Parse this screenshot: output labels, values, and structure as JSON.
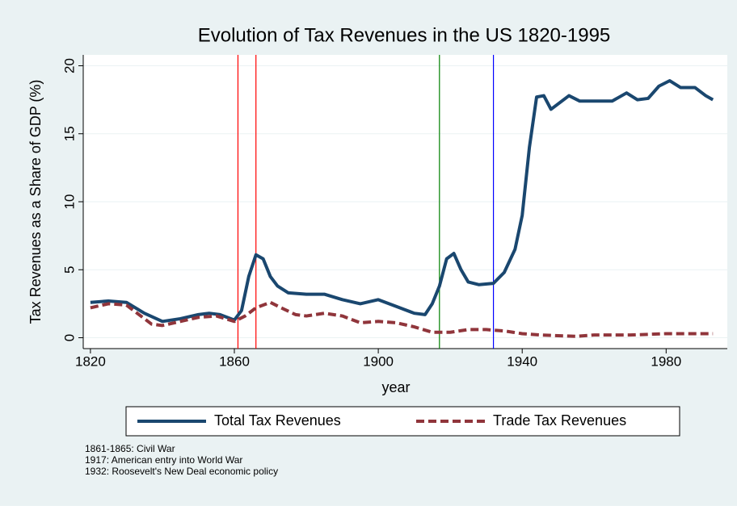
{
  "chart_data": {
    "type": "line",
    "title": "Evolution of Tax Revenues in the US 1820-1995",
    "x_label": "year",
    "y_label": "Tax Revenues as a Share of GDP (%)",
    "xlim": [
      1818,
      1997
    ],
    "xticks": [
      1820,
      1860,
      1900,
      1940,
      1980
    ],
    "ylim": [
      -0.8,
      20.8
    ],
    "yticks": [
      0,
      5,
      10,
      15,
      20
    ],
    "grid": true,
    "series": [
      {
        "name": "Total Tax Revenues",
        "color": "#1a476f",
        "dash": false,
        "x": [
          1820,
          1825,
          1830,
          1835,
          1840,
          1845,
          1850,
          1853,
          1856,
          1860,
          1862,
          1864,
          1866,
          1868,
          1870,
          1872,
          1875,
          1880,
          1885,
          1890,
          1895,
          1900,
          1905,
          1910,
          1913,
          1915,
          1917,
          1919,
          1921,
          1923,
          1925,
          1928,
          1932,
          1935,
          1938,
          1940,
          1942,
          1944,
          1946,
          1948,
          1950,
          1953,
          1956,
          1960,
          1965,
          1969,
          1972,
          1975,
          1978,
          1981,
          1984,
          1988,
          1991,
          1993
        ],
        "values": [
          2.6,
          2.7,
          2.6,
          1.8,
          1.2,
          1.4,
          1.7,
          1.8,
          1.7,
          1.3,
          2.0,
          4.5,
          6.1,
          5.8,
          4.5,
          3.8,
          3.3,
          3.2,
          3.2,
          2.8,
          2.5,
          2.8,
          2.3,
          1.8,
          1.7,
          2.5,
          3.8,
          5.8,
          6.2,
          5.0,
          4.1,
          3.9,
          4.0,
          4.8,
          6.5,
          9.0,
          14.0,
          17.7,
          17.8,
          16.8,
          17.2,
          17.8,
          17.4,
          17.4,
          17.4,
          18.0,
          17.5,
          17.6,
          18.5,
          18.9,
          18.4,
          18.4,
          17.8,
          17.5
        ]
      },
      {
        "name": "Trade Tax Revenues",
        "color": "#90353b",
        "dash": true,
        "x": [
          1820,
          1825,
          1830,
          1833,
          1837,
          1840,
          1845,
          1850,
          1855,
          1860,
          1863,
          1866,
          1870,
          1873,
          1877,
          1880,
          1885,
          1890,
          1895,
          1900,
          1905,
          1910,
          1915,
          1920,
          1925,
          1930,
          1935,
          1940,
          1945,
          1950,
          1955,
          1960,
          1970,
          1980,
          1993
        ],
        "values": [
          2.2,
          2.5,
          2.4,
          1.8,
          1.0,
          0.9,
          1.2,
          1.5,
          1.6,
          1.2,
          1.6,
          2.2,
          2.6,
          2.2,
          1.7,
          1.6,
          1.8,
          1.6,
          1.1,
          1.2,
          1.1,
          0.8,
          0.4,
          0.4,
          0.6,
          0.6,
          0.5,
          0.3,
          0.2,
          0.15,
          0.1,
          0.2,
          0.2,
          0.3,
          0.3
        ]
      }
    ],
    "vlines": [
      {
        "x": 1861,
        "color": "#ff0000"
      },
      {
        "x": 1866,
        "color": "#ff0000"
      },
      {
        "x": 1917,
        "color": "#008000"
      },
      {
        "x": 1932,
        "color": "#0000ff"
      }
    ],
    "notes": [
      "1861-1865: Civil War",
      "1917: American entry into World War",
      "1932: Roosevelt's New Deal economic policy"
    ]
  }
}
